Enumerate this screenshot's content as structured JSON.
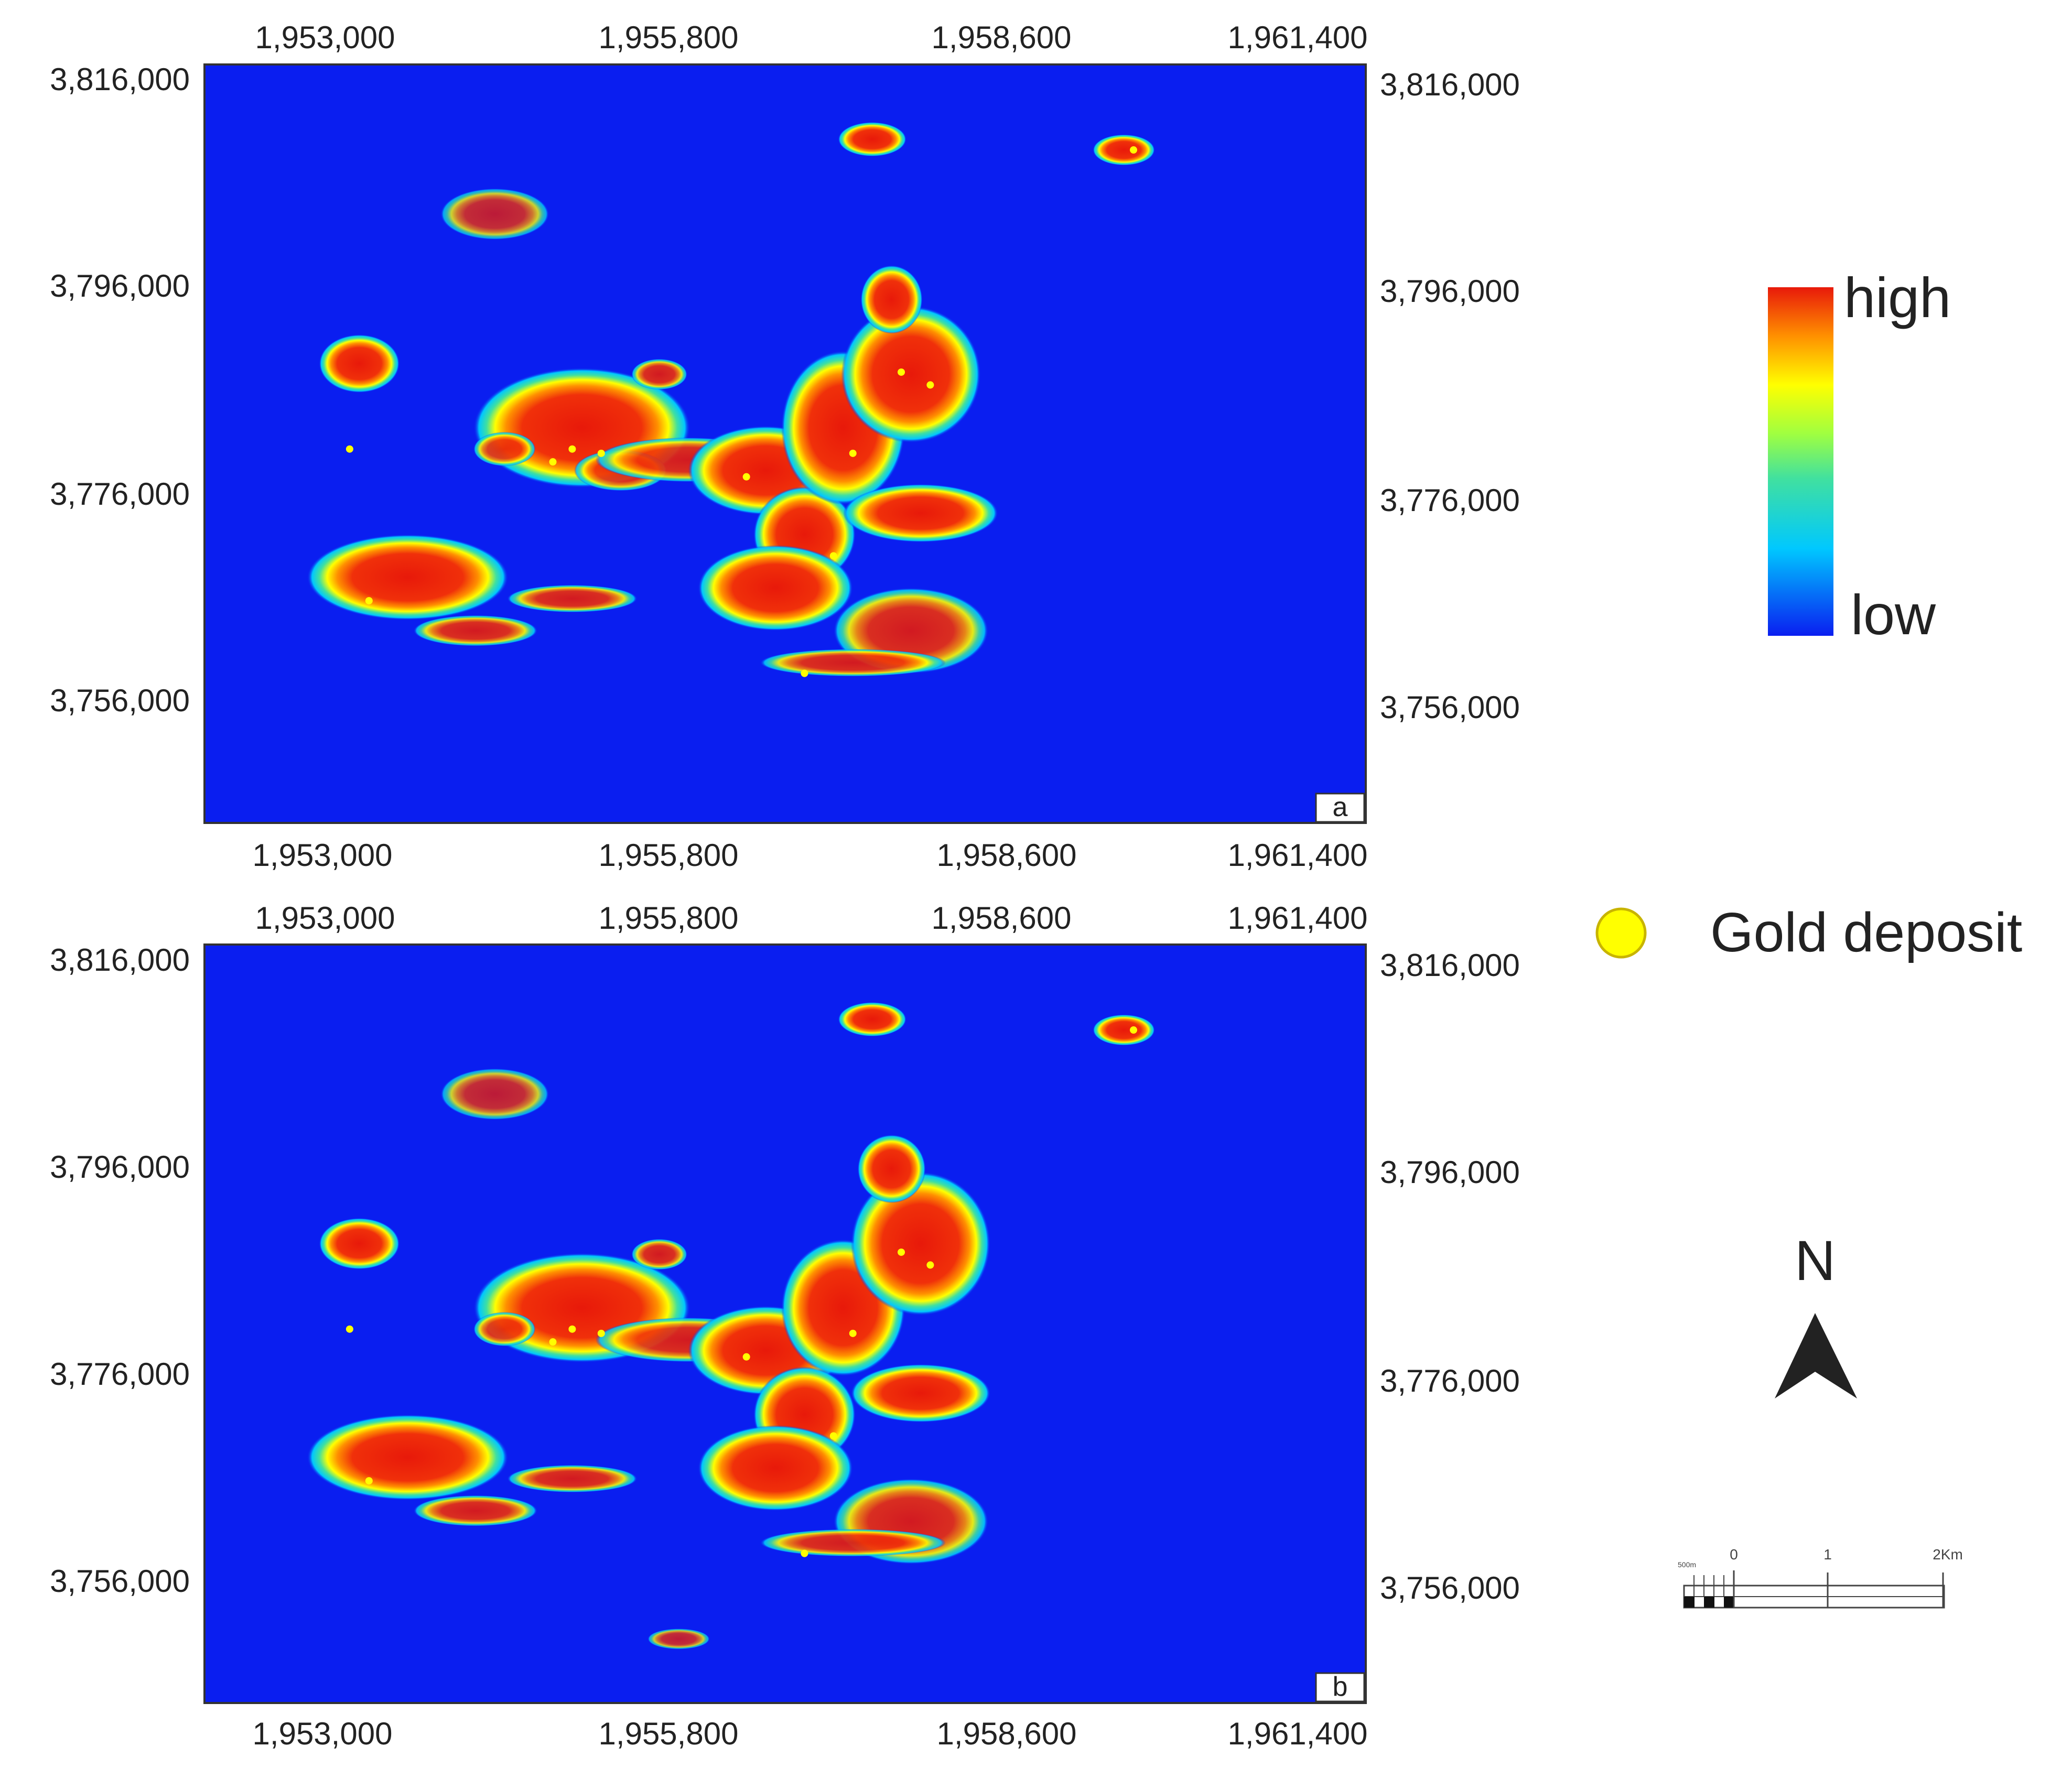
{
  "panels": [
    {
      "id": "a",
      "label": "a"
    },
    {
      "id": "b",
      "label": "b"
    }
  ],
  "axes": {
    "x_ticks": [
      "1,953,000",
      "1,955,800",
      "1,958,600",
      "1,961,400"
    ],
    "y_ticks": [
      "3,816,000",
      "3,796,000",
      "3,776,000",
      "3,756,000"
    ]
  },
  "colorbar": {
    "high_label": "high",
    "low_label": "low"
  },
  "legend": {
    "deposit_label": "Gold deposit"
  },
  "north_arrow": {
    "label": "N"
  },
  "scale_bar": {
    "small_label": "500m",
    "labels": [
      "0",
      "1",
      "2Km"
    ]
  },
  "colors": {
    "background": "#0a1ef0",
    "anomaly_high": "#e8190a",
    "deposit": "#ffff00",
    "deposit_border": "#c8b400"
  },
  "chart_data": {
    "type": "heatmap",
    "description_units": "prospectivity (low to high) over projected easting/northing",
    "xlim": [
      1951400,
      1963400
    ],
    "ylim": [
      3747000,
      3818000
    ],
    "x_ticks": [
      1953000,
      1955800,
      1958600,
      1961400
    ],
    "y_ticks": [
      3816000,
      3796000,
      3776000,
      3756000
    ],
    "color_scale": [
      "#0a1ef0",
      "#00c8ff",
      "#40e0a0",
      "#a0ff40",
      "#ffff00",
      "#ff9000",
      "#e8190a"
    ],
    "panels": [
      {
        "label": "a",
        "anomalies": [
          {
            "x": 1953000,
            "y": 3790000,
            "rx": 260,
            "ry": 1700,
            "level": 1.0
          },
          {
            "x": 1953500,
            "y": 3770000,
            "rx": 650,
            "ry": 2500,
            "level": 1.0
          },
          {
            "x": 1954200,
            "y": 3765000,
            "rx": 400,
            "ry": 900,
            "level": 0.9
          },
          {
            "x": 1955300,
            "y": 3784000,
            "rx": 700,
            "ry": 3500,
            "level": 1.0
          },
          {
            "x": 1955700,
            "y": 3780000,
            "rx": 300,
            "ry": 1200,
            "level": 0.9
          },
          {
            "x": 1956400,
            "y": 3781000,
            "rx": 600,
            "ry": 1300,
            "level": 0.9
          },
          {
            "x": 1957200,
            "y": 3780000,
            "rx": 500,
            "ry": 2600,
            "level": 1.0
          },
          {
            "x": 1957600,
            "y": 3774000,
            "rx": 330,
            "ry": 2800,
            "level": 1.0
          },
          {
            "x": 1957300,
            "y": 3769000,
            "rx": 500,
            "ry": 2500,
            "level": 1.0
          },
          {
            "x": 1958700,
            "y": 3765000,
            "rx": 500,
            "ry": 2500,
            "level": 0.9
          },
          {
            "x": 1958100,
            "y": 3762000,
            "rx": 600,
            "ry": 800,
            "level": 0.9
          },
          {
            "x": 1958000,
            "y": 3784000,
            "rx": 400,
            "ry": 4500,
            "level": 1.0
          },
          {
            "x": 1958700,
            "y": 3789000,
            "rx": 450,
            "ry": 4000,
            "level": 1.0
          },
          {
            "x": 1958800,
            "y": 3776000,
            "rx": 500,
            "ry": 1700,
            "level": 1.0
          },
          {
            "x": 1958500,
            "y": 3796000,
            "rx": 200,
            "ry": 2000,
            "level": 1.0
          },
          {
            "x": 1958300,
            "y": 3811000,
            "rx": 220,
            "ry": 1000,
            "level": 1.0
          },
          {
            "x": 1954400,
            "y": 3804000,
            "rx": 350,
            "ry": 1500,
            "level": 0.8
          },
          {
            "x": 1955200,
            "y": 3768000,
            "rx": 420,
            "ry": 800,
            "level": 0.9
          },
          {
            "x": 1954500,
            "y": 3782000,
            "rx": 200,
            "ry": 1000,
            "level": 0.9
          },
          {
            "x": 1956100,
            "y": 3789000,
            "rx": 180,
            "ry": 900,
            "level": 0.9
          },
          {
            "x": 1960900,
            "y": 3810000,
            "rx": 200,
            "ry": 900,
            "level": 1.0
          }
        ],
        "deposits": [
          [
            1952900,
            3782000
          ],
          [
            1953100,
            3767800
          ],
          [
            1955200,
            3782000
          ],
          [
            1955000,
            3780800
          ],
          [
            1955500,
            3781600
          ],
          [
            1957000,
            3779400
          ],
          [
            1958100,
            3781600
          ],
          [
            1958900,
            3788000
          ],
          [
            1958600,
            3789200
          ],
          [
            1957600,
            3761000
          ],
          [
            1957900,
            3772000
          ],
          [
            1961000,
            3810000
          ]
        ]
      },
      {
        "label": "b",
        "anomalies": [
          {
            "x": 1953000,
            "y": 3790000,
            "rx": 260,
            "ry": 1500,
            "level": 1.0
          },
          {
            "x": 1953500,
            "y": 3770000,
            "rx": 650,
            "ry": 2500,
            "level": 1.0
          },
          {
            "x": 1954200,
            "y": 3765000,
            "rx": 400,
            "ry": 900,
            "level": 0.9
          },
          {
            "x": 1955300,
            "y": 3784000,
            "rx": 700,
            "ry": 3200,
            "level": 1.0
          },
          {
            "x": 1956400,
            "y": 3781000,
            "rx": 600,
            "ry": 1300,
            "level": 0.9
          },
          {
            "x": 1957200,
            "y": 3780000,
            "rx": 500,
            "ry": 2600,
            "level": 1.0
          },
          {
            "x": 1957600,
            "y": 3774000,
            "rx": 330,
            "ry": 2800,
            "level": 1.0
          },
          {
            "x": 1957300,
            "y": 3769000,
            "rx": 500,
            "ry": 2500,
            "level": 1.0
          },
          {
            "x": 1958700,
            "y": 3764000,
            "rx": 500,
            "ry": 2500,
            "level": 0.9
          },
          {
            "x": 1958100,
            "y": 3762000,
            "rx": 600,
            "ry": 800,
            "level": 0.9
          },
          {
            "x": 1958000,
            "y": 3784000,
            "rx": 400,
            "ry": 4000,
            "level": 1.0
          },
          {
            "x": 1958800,
            "y": 3790000,
            "rx": 450,
            "ry": 4200,
            "level": 1.0
          },
          {
            "x": 1958800,
            "y": 3776000,
            "rx": 450,
            "ry": 1700,
            "level": 1.0
          },
          {
            "x": 1958500,
            "y": 3797000,
            "rx": 220,
            "ry": 2000,
            "level": 1.0
          },
          {
            "x": 1958300,
            "y": 3811000,
            "rx": 220,
            "ry": 1000,
            "level": 1.0
          },
          {
            "x": 1954400,
            "y": 3804000,
            "rx": 350,
            "ry": 1500,
            "level": 0.8
          },
          {
            "x": 1955200,
            "y": 3768000,
            "rx": 420,
            "ry": 800,
            "level": 0.9
          },
          {
            "x": 1954500,
            "y": 3782000,
            "rx": 200,
            "ry": 1000,
            "level": 0.9
          },
          {
            "x": 1956100,
            "y": 3789000,
            "rx": 180,
            "ry": 900,
            "level": 0.9
          },
          {
            "x": 1956300,
            "y": 3753000,
            "rx": 200,
            "ry": 600,
            "level": 0.8
          },
          {
            "x": 1960900,
            "y": 3810000,
            "rx": 200,
            "ry": 900,
            "level": 1.0
          }
        ],
        "deposits": [
          [
            1952900,
            3782000
          ],
          [
            1953100,
            3767800
          ],
          [
            1955200,
            3782000
          ],
          [
            1955000,
            3780800
          ],
          [
            1955500,
            3781600
          ],
          [
            1957000,
            3779400
          ],
          [
            1958100,
            3781600
          ],
          [
            1958900,
            3788000
          ],
          [
            1958600,
            3789200
          ],
          [
            1957600,
            3761000
          ],
          [
            1957900,
            3772000
          ],
          [
            1961000,
            3810000
          ]
        ]
      }
    ]
  }
}
